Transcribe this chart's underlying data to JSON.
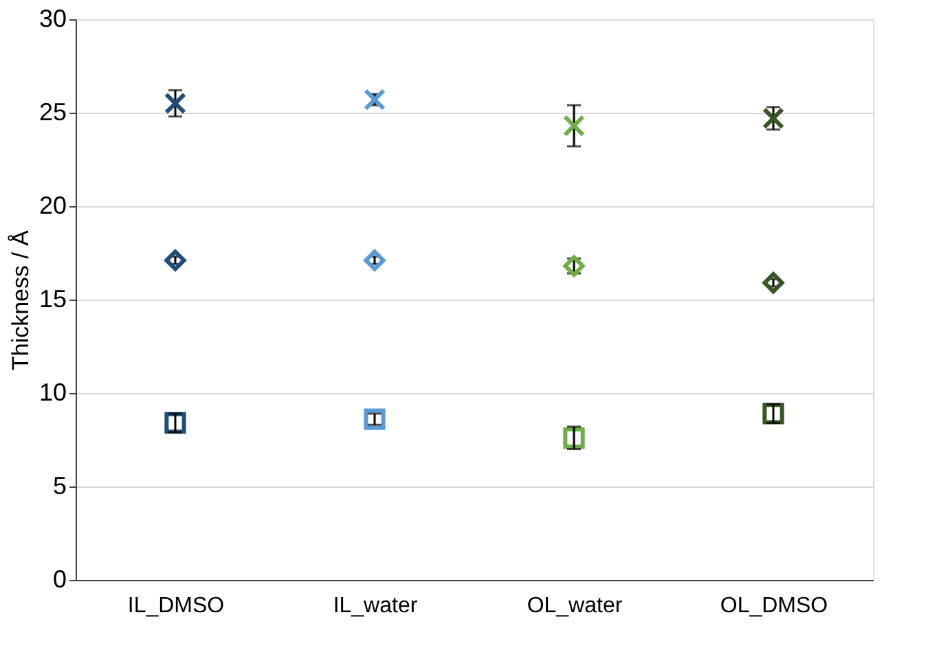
{
  "chart_data": {
    "type": "scatter",
    "ylabel": "Thickness / Å",
    "categories": [
      "IL_DMSO",
      "IL_water",
      "OL_water",
      "OL_DMSO"
    ],
    "ylim": [
      0,
      30
    ],
    "yticks": [
      0,
      5,
      10,
      15,
      20,
      25,
      30
    ],
    "grid": "y",
    "series": [
      {
        "marker": "square",
        "colors": [
          "#1f4e79",
          "#5b9bd5",
          "#70ad47",
          "#375623"
        ],
        "values": [
          8.4,
          8.6,
          7.6,
          8.9
        ],
        "errors": [
          0.5,
          0.3,
          0.6,
          0.5
        ]
      },
      {
        "marker": "diamond",
        "colors": [
          "#1f4e79",
          "#5b9bd5",
          "#70ad47",
          "#375623"
        ],
        "values": [
          17.1,
          17.1,
          16.8,
          15.9
        ],
        "errors": [
          0.2,
          0.2,
          0.4,
          0.2
        ]
      },
      {
        "marker": "cross",
        "colors": [
          "#1f4e79",
          "#5b9bd5",
          "#70ad47",
          "#375623"
        ],
        "values": [
          25.5,
          25.7,
          24.3,
          24.7
        ],
        "errors": [
          0.7,
          0.3,
          1.1,
          0.6
        ]
      }
    ]
  }
}
